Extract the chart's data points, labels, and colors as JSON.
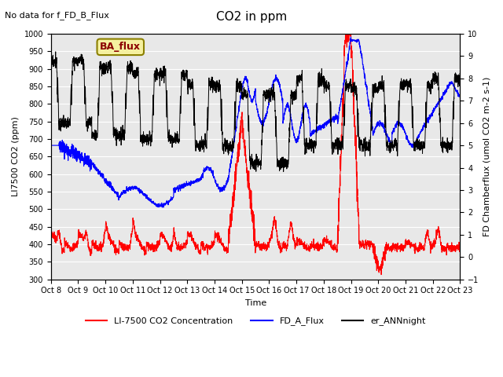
{
  "title": "CO2 in ppm",
  "topleft_text": "No data for f_FD_B_Flux",
  "xlabel": "Time",
  "ylabel_left": "LI7500 CO2 (ppm)",
  "ylabel_right": "FD Chamberflux (umol CO2 m-2 s-1)",
  "ylim_left": [
    300,
    1000
  ],
  "ylim_right": [
    -1.0,
    10.0
  ],
  "xtick_labels": [
    "Oct 8",
    "Oct 9",
    "Oct 10",
    "Oct 11",
    "Oct 12",
    "Oct 13",
    "Oct 14",
    "Oct 15",
    "Oct 16",
    "Oct 17",
    "Oct 18",
    "Oct 19",
    "Oct 20",
    "Oct 21",
    "Oct 22",
    "Oct 23"
  ],
  "legend_box_label": "BA_flux",
  "legend_box_color": "#f5f0a0",
  "legend_box_edge": "#8B8000",
  "legend_entries": [
    "LI-7500 CO2 Concentration",
    "FD_A_Flux",
    "er_ANNnight"
  ],
  "line_colors": [
    "red",
    "blue",
    "black"
  ],
  "background_color": "#e8e8e8",
  "n_points": 2880
}
